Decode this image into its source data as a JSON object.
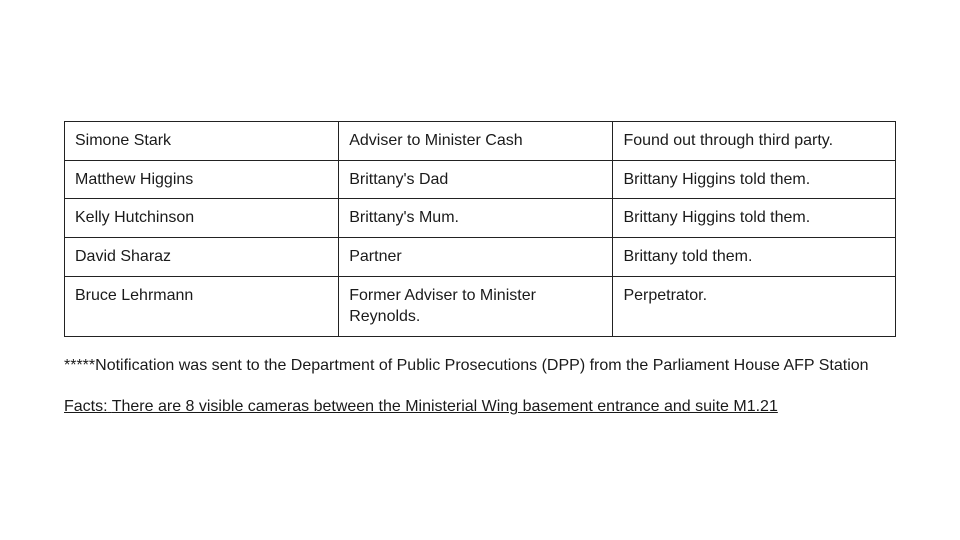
{
  "table": {
    "columns": [
      {
        "width": "33%"
      },
      {
        "width": "33%"
      },
      {
        "width": "34%"
      }
    ],
    "rows": [
      [
        "Simone Stark",
        "Adviser to Minister Cash",
        "Found out through third party."
      ],
      [
        "Matthew Higgins",
        "Brittany's Dad",
        "Brittany Higgins told them."
      ],
      [
        "Kelly Hutchinson",
        "Brittany's Mum.",
        "Brittany Higgins told them."
      ],
      [
        "David Sharaz",
        "Partner",
        "Brittany told them."
      ],
      [
        "Bruce Lehrmann",
        "Former Adviser to Minister Reynolds.",
        "Perpetrator."
      ]
    ],
    "border_color": "#222222",
    "cell_fontsize": 16,
    "cell_padding": "8px 10px"
  },
  "notification": {
    "prefix": "*****",
    "text": "Notification was sent to the Department of Public Prosecutions (DPP) from the Parliament House AFP Station"
  },
  "facts": {
    "label": "Facts:",
    "text": "There are 8 visible cameras between the Ministerial Wing basement entrance and suite M1.21"
  },
  "styling": {
    "background_color": "#ffffff",
    "text_color": "#1a1a1a",
    "document_width": 832,
    "body_fontsize": 16,
    "font_family": "Arial, Helvetica, sans-serif"
  }
}
